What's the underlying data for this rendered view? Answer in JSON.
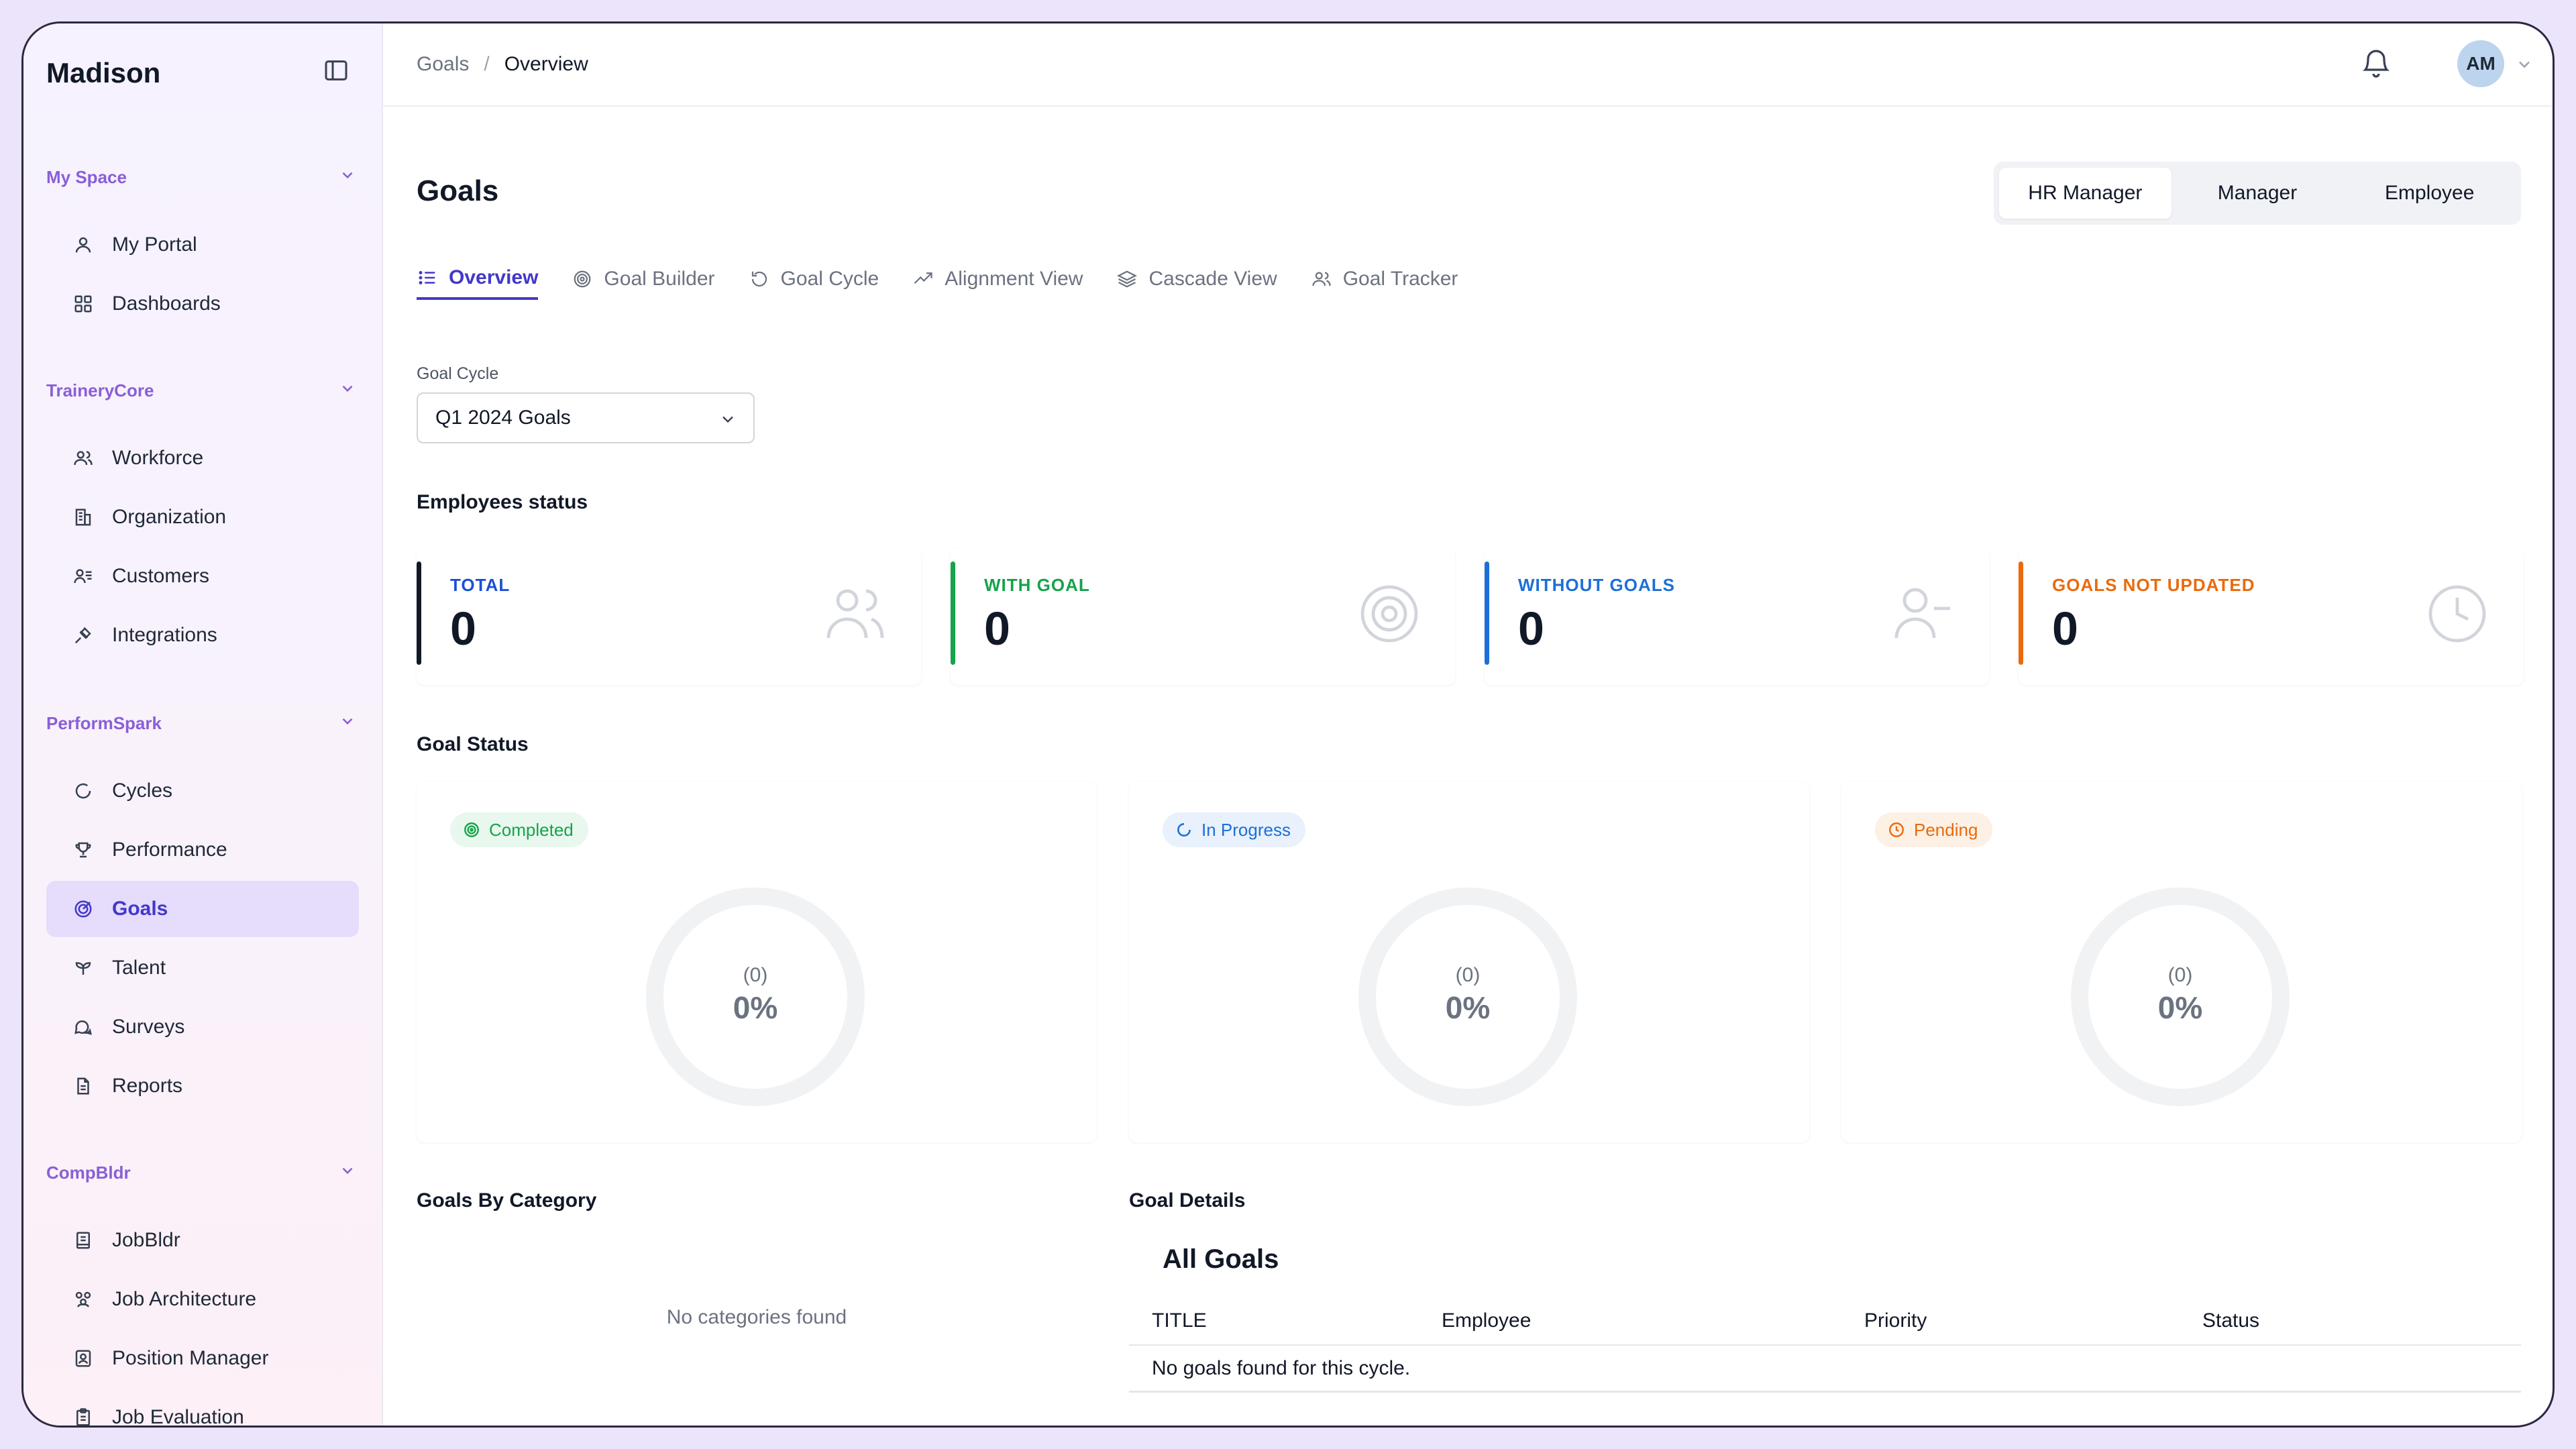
{
  "app": {
    "brand": "Madison"
  },
  "sidebar": {
    "sections": [
      {
        "title": "My Space",
        "items": [
          {
            "label": "My Portal",
            "icon": "user-icon"
          },
          {
            "label": "Dashboards",
            "icon": "grid-icon"
          }
        ]
      },
      {
        "title": "TraineryCore",
        "items": [
          {
            "label": "Workforce",
            "icon": "users-icon"
          },
          {
            "label": "Organization",
            "icon": "building-icon"
          },
          {
            "label": "Customers",
            "icon": "contacts-icon"
          },
          {
            "label": "Integrations",
            "icon": "plug-icon"
          }
        ]
      },
      {
        "title": "PerformSpark",
        "items": [
          {
            "label": "Cycles",
            "icon": "refresh-icon"
          },
          {
            "label": "Performance",
            "icon": "trophy-icon"
          },
          {
            "label": "Goals",
            "icon": "target-icon",
            "active": true
          },
          {
            "label": "Talent",
            "icon": "sprout-icon"
          },
          {
            "label": "Surveys",
            "icon": "chat-icon"
          },
          {
            "label": "Reports",
            "icon": "file-icon"
          }
        ]
      },
      {
        "title": "CompBldr",
        "items": [
          {
            "label": "JobBldr",
            "icon": "notebook-icon"
          },
          {
            "label": "Job Architecture",
            "icon": "group-icon"
          },
          {
            "label": "Position Manager",
            "icon": "id-card-icon"
          },
          {
            "label": "Job Evaluation",
            "icon": "clipboard-icon"
          }
        ]
      }
    ]
  },
  "topbar": {
    "breadcrumb": [
      "Goals",
      "Overview"
    ],
    "breadcrumb_separator": "/",
    "avatar_initials": "AM"
  },
  "page": {
    "title": "Goals"
  },
  "role_switch": {
    "options": [
      "HR Manager",
      "Manager",
      "Employee"
    ],
    "selected": "HR Manager"
  },
  "tabs": [
    {
      "label": "Overview",
      "icon": "list-icon",
      "active": true
    },
    {
      "label": "Goal Builder",
      "icon": "target-icon"
    },
    {
      "label": "Goal Cycle",
      "icon": "rotate-icon"
    },
    {
      "label": "Alignment View",
      "icon": "trend-icon"
    },
    {
      "label": "Cascade View",
      "icon": "layers-icon"
    },
    {
      "label": "Goal Tracker",
      "icon": "users-icon"
    }
  ],
  "goal_cycle": {
    "label": "Goal Cycle",
    "value": "Q1 2024 Goals"
  },
  "employees_status": {
    "title": "Employees status",
    "cards": [
      {
        "label": "TOTAL",
        "value": "0",
        "color": "#111827",
        "icon": "users-icon"
      },
      {
        "label": "WITH GOAL",
        "value": "0",
        "color": "#16a34a",
        "icon": "target-icon"
      },
      {
        "label": "WITHOUT GOALS",
        "value": "0",
        "color": "#1d6fd8",
        "icon": "user-minus-icon"
      },
      {
        "label": "GOALS NOT UPDATED",
        "value": "0",
        "color": "#ea6a0c",
        "icon": "clock-icon"
      }
    ]
  },
  "goal_status": {
    "title": "Goal Status",
    "cards": [
      {
        "label": "Completed",
        "count": "(0)",
        "percent": "0%",
        "color": "#16a34a",
        "bg": "#e8f8ee",
        "icon": "target-icon"
      },
      {
        "label": "In Progress",
        "count": "(0)",
        "percent": "0%",
        "color": "#1d6fd8",
        "bg": "#e8f1fc",
        "icon": "loader-icon"
      },
      {
        "label": "Pending",
        "count": "(0)",
        "percent": "0%",
        "color": "#ea6a0c",
        "bg": "#fdf0e4",
        "icon": "clock-icon"
      }
    ]
  },
  "goals_by_category": {
    "title": "Goals By Category",
    "empty": "No categories found"
  },
  "goal_details": {
    "title": "Goal Details",
    "table_title": "All Goals",
    "columns": [
      "TITLE",
      "Employee",
      "Priority",
      "Status"
    ],
    "empty": "No goals found for this cycle."
  }
}
